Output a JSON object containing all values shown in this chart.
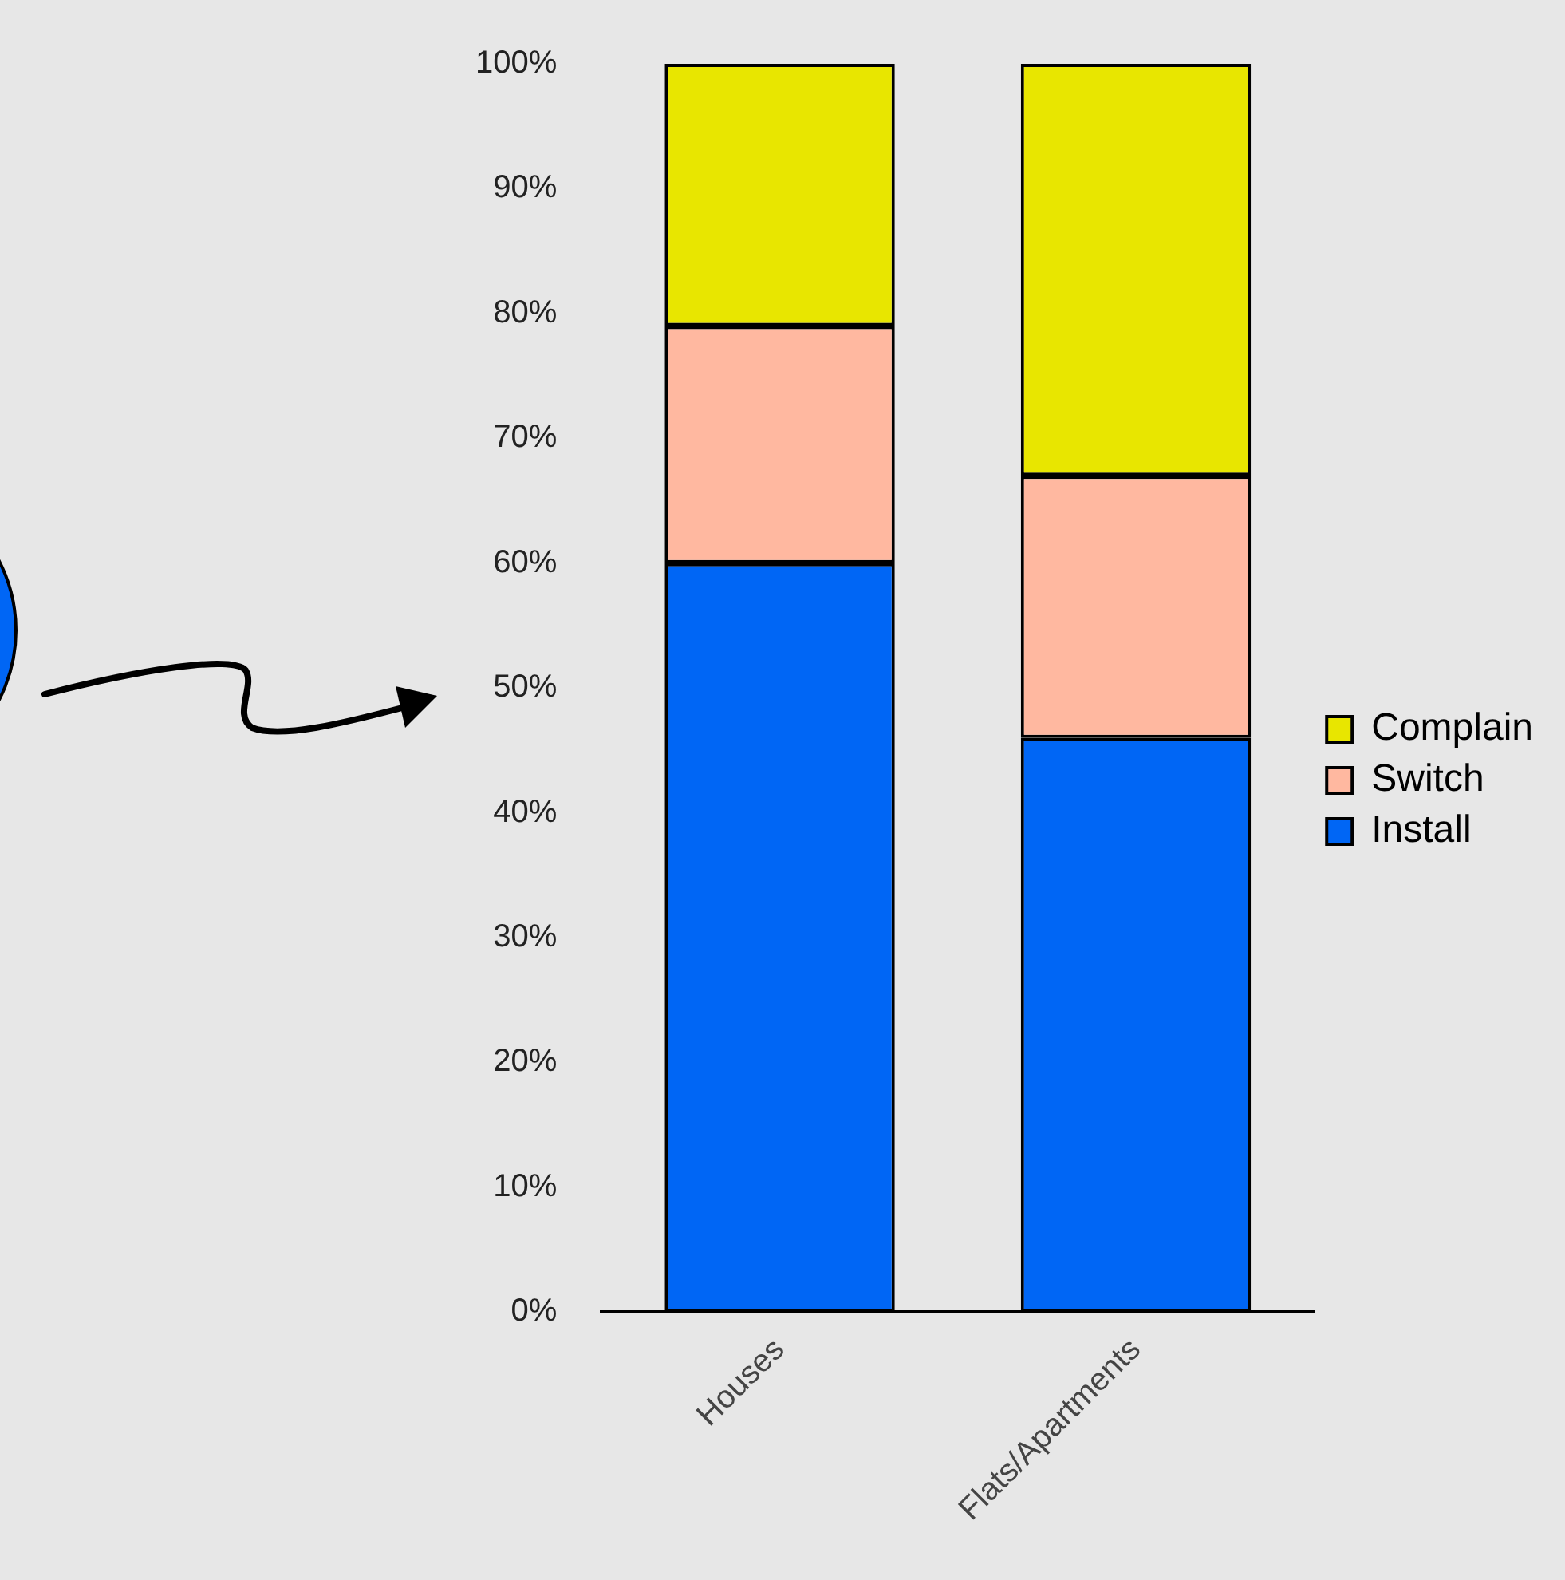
{
  "chart_data": {
    "type": "bar",
    "stacked": true,
    "categories": [
      "Houses",
      "Flats/Apartments"
    ],
    "series": [
      {
        "name": "Install",
        "color": "#0066f5",
        "values": [
          60,
          46
        ]
      },
      {
        "name": "Switch",
        "color": "#ffb8a0",
        "values": [
          19,
          21
        ]
      },
      {
        "name": "Complain",
        "color": "#e8e600",
        "values": [
          21,
          33
        ]
      }
    ],
    "ylim": [
      0,
      100
    ],
    "yticks": [
      {
        "value": 0,
        "label": "0%"
      },
      {
        "value": 10,
        "label": "10%"
      },
      {
        "value": 20,
        "label": "20%"
      },
      {
        "value": 30,
        "label": "30%"
      },
      {
        "value": 40,
        "label": "40%"
      },
      {
        "value": 50,
        "label": "50%"
      },
      {
        "value": 60,
        "label": "60%"
      },
      {
        "value": 70,
        "label": "70%"
      },
      {
        "value": 80,
        "label": "80%"
      },
      {
        "value": 90,
        "label": "90%"
      },
      {
        "value": 100,
        "label": "100%"
      }
    ],
    "grid": false,
    "legend": "right"
  }
}
